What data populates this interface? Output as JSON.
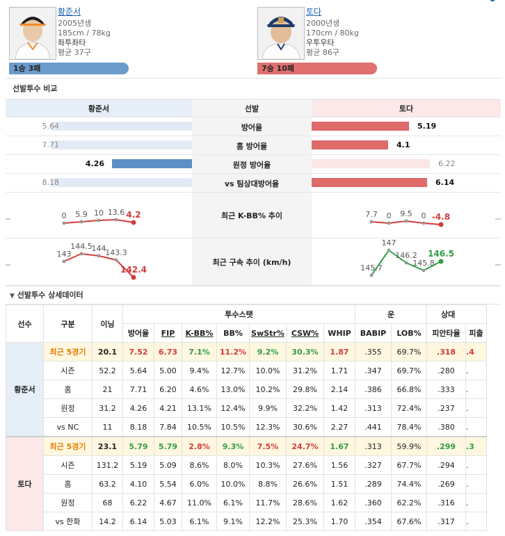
{
  "pitchers": {
    "left": {
      "name": "황준서",
      "birth": "2005년생",
      "body": "185cm / 78kg",
      "hand": "좌투좌타",
      "avg_pitches": "평균 37구",
      "record": "1승 3패",
      "record_color": "#6b9bcb"
    },
    "right": {
      "name": "토다",
      "birth": "2000년생",
      "body": "170cm / 80kg",
      "hand": "우투우타",
      "avg_pitches": "평균 86구",
      "record": "7승 10패",
      "record_color": "#e07070"
    }
  },
  "compare": {
    "title": "선발투수 비교",
    "header_left": "황준서",
    "header_mid": "선발",
    "header_right": "토다",
    "rows": [
      {
        "label": "방어율",
        "left": "5.64",
        "right": "5.19",
        "left_v": 5.64,
        "right_v": 5.19,
        "better": "right"
      },
      {
        "label": "홈 방어율",
        "left": "7.71",
        "right": "4.1",
        "left_v": 7.71,
        "right_v": 4.1,
        "better": "right"
      },
      {
        "label": "원정 방어율",
        "left": "4.26",
        "right": "6.22",
        "left_v": 4.26,
        "right_v": 6.22,
        "better": "left"
      },
      {
        "label": "vs 팀상대방어율",
        "left": "8.18",
        "right": "6.14",
        "left_v": 8.18,
        "right_v": 6.14,
        "better": "right"
      }
    ],
    "kbb_label": "최근 K-BB% 추이",
    "velo_label": "최근 구속 추이 (km/h)",
    "kbb_left": [
      "0",
      "5.9",
      "10",
      "13.6",
      "4.2"
    ],
    "kbb_right": [
      "7.7",
      "0",
      "9.5",
      "0",
      "-4.8"
    ],
    "velo_left": [
      "143",
      "144.5",
      "144",
      "143.3",
      "142.4"
    ],
    "velo_right": [
      "145.7",
      "147",
      "146.2",
      "145.8",
      "146.5"
    ],
    "trend_colors": {
      "up": "#2e9e44",
      "down": "#d23b3b",
      "base": "#999999"
    }
  },
  "detail": {
    "title": "선발투수 상세데이터",
    "col_player": "선수",
    "col_type": "구분",
    "col_ip": "이닝",
    "group_pitching": "투수스탯",
    "group_luck": "운",
    "group_other": "상대",
    "cols": [
      "방어율",
      "FIP",
      "K-BB%",
      "BB%",
      "SwStr%",
      "CSW%",
      "WHIP",
      "BABIP",
      "LOB%",
      "피안타율",
      "피출"
    ],
    "left_player": "황준서",
    "right_player": "토다",
    "left_rows": [
      {
        "type": "최근 5경기",
        "ip": "20.1",
        "vals": [
          "7.52",
          "6.73",
          "7.1%",
          "11.2%",
          "9.2%",
          "30.3%",
          "1.87",
          ".355",
          "69.7%",
          ".318",
          ".4"
        ]
      },
      {
        "type": "시즌",
        "ip": "52.2",
        "vals": [
          "5.64",
          "5.00",
          "9.4%",
          "12.7%",
          "10.0%",
          "31.2%",
          "1.71",
          ".347",
          "69.7%",
          ".280",
          "."
        ]
      },
      {
        "type": "홈",
        "ip": "21",
        "vals": [
          "7.71",
          "6.20",
          "4.6%",
          "13.0%",
          "10.2%",
          "29.8%",
          "2.14",
          ".386",
          "66.8%",
          ".333",
          "."
        ]
      },
      {
        "type": "원정",
        "ip": "31.2",
        "vals": [
          "4.26",
          "4.21",
          "13.1%",
          "12.4%",
          "9.9%",
          "32.2%",
          "1.42",
          ".313",
          "72.4%",
          ".237",
          "."
        ]
      },
      {
        "type": "vs NC",
        "ip": "11",
        "vals": [
          "8.18",
          "7.84",
          "10.5%",
          "10.5%",
          "12.3%",
          "30.6%",
          "2.27",
          ".441",
          "78.4%",
          ".380",
          "."
        ]
      }
    ],
    "right_rows": [
      {
        "type": "최근 5경기",
        "ip": "23.1",
        "vals": [
          "5.79",
          "5.79",
          "2.8%",
          "9.3%",
          "7.5%",
          "24.7%",
          "1.67",
          ".313",
          "59.9%",
          ".299",
          ".3"
        ]
      },
      {
        "type": "시즌",
        "ip": "131.2",
        "vals": [
          "5.19",
          "5.09",
          "8.6%",
          "8.0%",
          "10.3%",
          "27.6%",
          "1.56",
          ".327",
          "67.7%",
          ".294",
          "."
        ]
      },
      {
        "type": "홈",
        "ip": "63.2",
        "vals": [
          "4.10",
          "5.54",
          "6.0%",
          "10.0%",
          "8.8%",
          "26.6%",
          "1.51",
          ".289",
          "74.4%",
          ".269",
          "."
        ]
      },
      {
        "type": "원정",
        "ip": "68",
        "vals": [
          "6.22",
          "4.67",
          "11.0%",
          "6.1%",
          "11.7%",
          "28.6%",
          "1.62",
          ".360",
          "62.2%",
          ".316",
          "."
        ]
      },
      {
        "type": "vs 한화",
        "ip": "14.2",
        "vals": [
          "6.14",
          "5.03",
          "6.1%",
          "9.1%",
          "12.2%",
          "25.3%",
          "1.70",
          ".354",
          "67.6%",
          ".317",
          "."
        ]
      }
    ]
  }
}
